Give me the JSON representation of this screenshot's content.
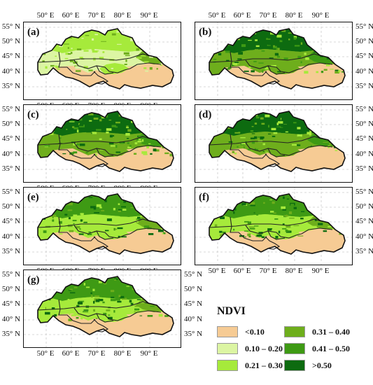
{
  "figure": {
    "panels": [
      {
        "label": "(a)",
        "lon_ticks_top": true,
        "lon_ticks_bottom": true,
        "lat_left": true,
        "lat_right": false,
        "scheme": "sparse"
      },
      {
        "label": "(b)",
        "lon_ticks_top": true,
        "lon_ticks_bottom": false,
        "lat_left": false,
        "lat_right": true,
        "scheme": "dense"
      },
      {
        "label": "(c)",
        "lon_ticks_top": false,
        "lon_ticks_bottom": true,
        "lat_left": true,
        "lat_right": false,
        "scheme": "dense"
      },
      {
        "label": "(d)",
        "lon_ticks_top": false,
        "lon_ticks_bottom": false,
        "lat_left": false,
        "lat_right": true,
        "scheme": "dense"
      },
      {
        "label": "(e)",
        "lon_ticks_top": false,
        "lon_ticks_bottom": true,
        "lat_left": true,
        "lat_right": false,
        "scheme": "medium"
      },
      {
        "label": "(f)",
        "lon_ticks_top": false,
        "lon_ticks_bottom": true,
        "lat_left": false,
        "lat_right": true,
        "scheme": "medium"
      },
      {
        "label": "(g)",
        "lon_ticks_top": false,
        "lon_ticks_bottom": true,
        "lat_left": true,
        "lat_right": true,
        "scheme": "medium"
      }
    ],
    "lon_ticks": [
      "50° E",
      "60° E",
      "70° E",
      "80° E",
      "90° E"
    ],
    "lat_ticks": [
      "55° N",
      "50° N",
      "45° N",
      "40° N",
      "35° N"
    ],
    "legend": {
      "title": "NDVI",
      "classes": [
        {
          "label": "<0.10",
          "color": "#f6cb94"
        },
        {
          "label": "0.10 – 0.20",
          "color": "#dcf5a3"
        },
        {
          "label": "0.21 – 0.30",
          "color": "#a6ea3b"
        },
        {
          "label": "0.31 – 0.40",
          "color": "#6eae1c"
        },
        {
          "label": "0.41 – 0.50",
          "color": "#3e9a14"
        },
        {
          "label": ">0.50",
          "color": "#0d6b10"
        }
      ]
    }
  }
}
